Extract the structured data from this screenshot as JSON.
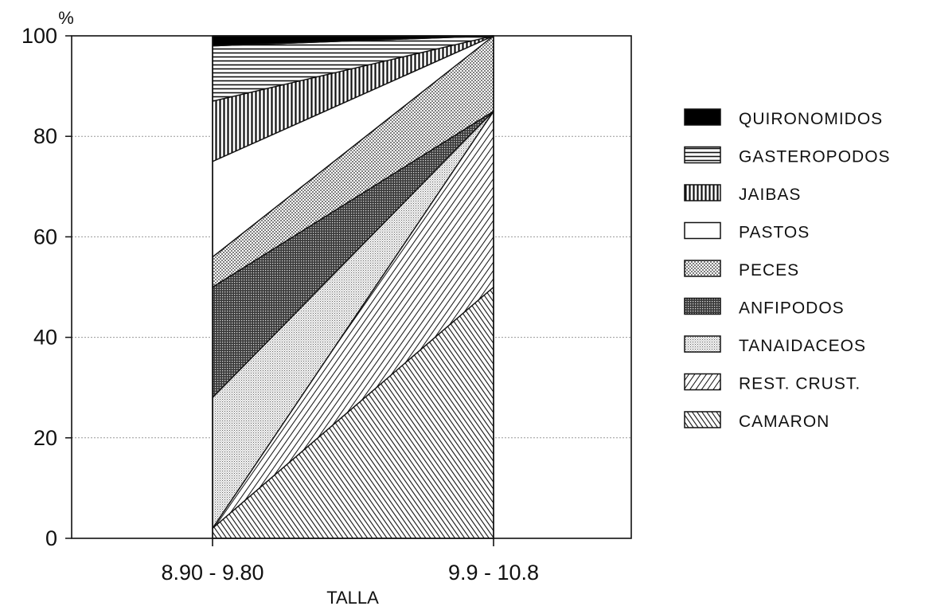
{
  "chart_data": {
    "type": "area",
    "title": "",
    "xlabel": "TALLA",
    "ylabel": "%",
    "categories": [
      "8.90 - 9.80",
      "9.9 - 10.8"
    ],
    "ylim": [
      0,
      100
    ],
    "yticks": [
      0,
      20,
      40,
      60,
      80,
      100
    ],
    "grid": true,
    "legend_position": "right",
    "stacking": "cumulative-percent",
    "series": [
      {
        "name": "CAMARON",
        "pattern": "diag-dense-down",
        "values": [
          2,
          50
        ]
      },
      {
        "name": "REST. CRUST.",
        "pattern": "diag-up",
        "values": [
          0,
          35
        ]
      },
      {
        "name": "TANAIDACEOS",
        "pattern": "stipple-light",
        "values": [
          26,
          0
        ]
      },
      {
        "name": "ANFIPODOS",
        "pattern": "crosshatch-dark",
        "values": [
          22,
          0
        ]
      },
      {
        "name": "PECES",
        "pattern": "dots",
        "values": [
          6,
          15
        ]
      },
      {
        "name": "PASTOS",
        "pattern": "blank",
        "values": [
          19,
          0
        ]
      },
      {
        "name": "JAIBAS",
        "pattern": "vertical-lines",
        "values": [
          12,
          0
        ]
      },
      {
        "name": "GASTEROPODOS",
        "pattern": "horizontal-lines",
        "values": [
          11,
          0
        ]
      },
      {
        "name": "QUIRONOMIDOS",
        "pattern": "solid-black",
        "values": [
          2,
          0
        ]
      }
    ]
  }
}
